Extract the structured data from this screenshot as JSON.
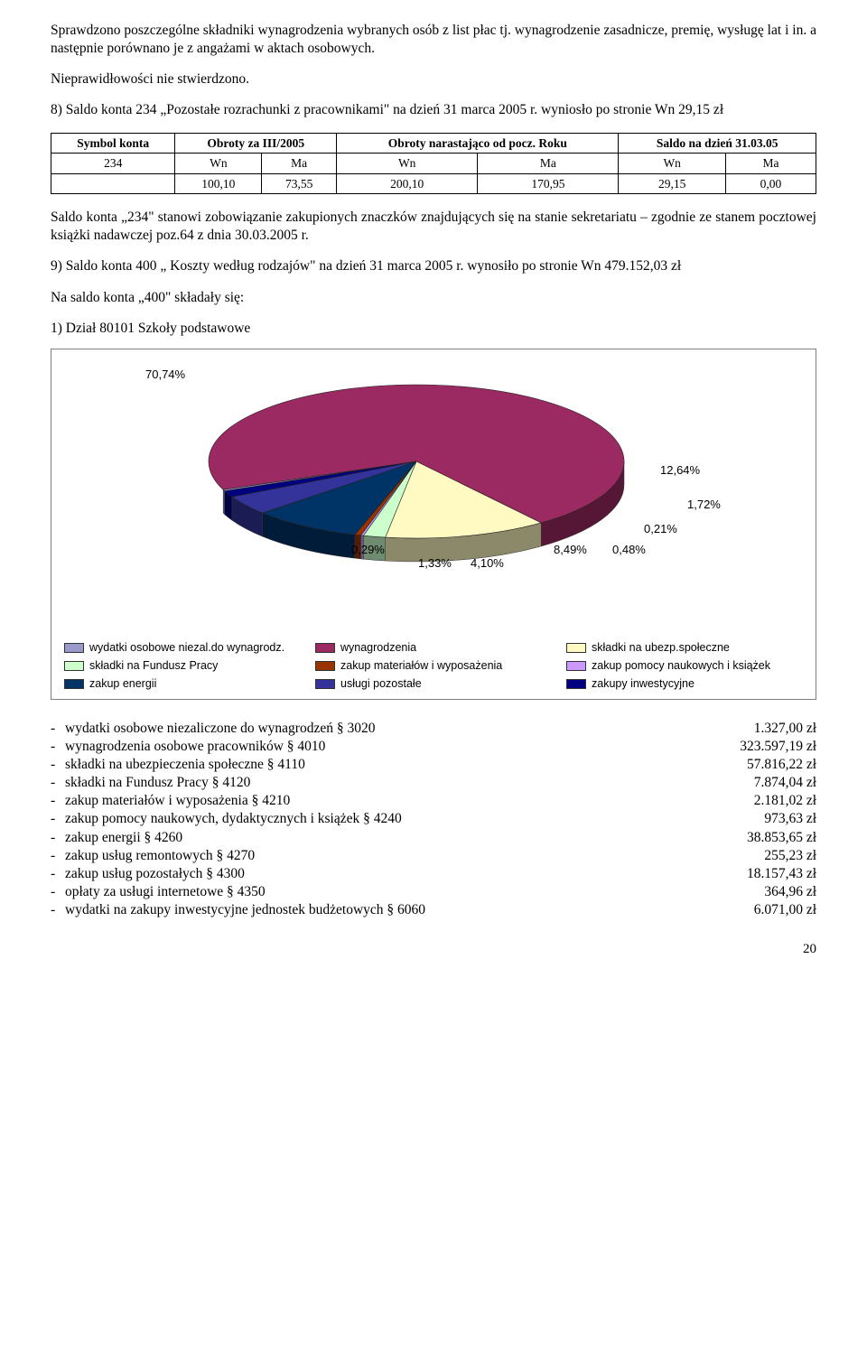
{
  "para1": "Sprawdzono poszczególne składniki wynagrodzenia wybranych osób z list płac tj. wynagrodzenie zasadnicze, premię, wysługę lat i in. a następnie porównano je z angażami w aktach osobowych.",
  "para2": "Nieprawidłowości nie stwierdzono.",
  "para3": "8) Saldo konta 234 „Pozostałe rozrachunki z pracownikami\" na dzień 31 marca 2005 r. wyniosło po stronie Wn 29,15 zł",
  "table": {
    "h_symbol": "Symbol konta",
    "h_obroty": "Obroty za III/2005",
    "h_narast": "Obroty narastająco od pocz. Roku",
    "h_saldo": "Saldo na dzień 31.03.05",
    "row_sym": "234",
    "wn": "Wn",
    "ma": "Ma",
    "v1": "100,10",
    "v2": "73,55",
    "v3": "200,10",
    "v4": "170,95",
    "v5": "29,15",
    "v6": "0,00"
  },
  "para4": "Saldo konta „234\" stanowi zobowiązanie zakupionych znaczków znajdujących się na stanie sekretariatu – zgodnie ze stanem pocztowej książki nadawczej poz.64 z dnia 30.03.2005 r.",
  "para5": "9) Saldo konta 400 „ Koszty według rodzajów\" na dzień 31 marca 2005 r. wynosiło po stronie Wn 479.152,03 zł",
  "para6": "Na saldo konta „400\" składały się:",
  "para7": "1)  Dział 80101 Szkoły podstawowe",
  "chart": {
    "type": "pie-3d",
    "slices": [
      {
        "label": "70,74%",
        "value": 70.74,
        "color": "#9b2a62",
        "legend": "wynagrodzenia"
      },
      {
        "label": "12,64%",
        "value": 12.64,
        "color": "#fff9c2",
        "legend": "składki na ubezp.społeczne"
      },
      {
        "label": "1,72%",
        "value": 1.72,
        "color": "#ccffcc",
        "legend": "składki na Fundusz Pracy"
      },
      {
        "label": "0,21%",
        "value": 0.21,
        "color": "#cc99ff",
        "legend": "zakup pomocy naukowych i książek"
      },
      {
        "label": "0,48%",
        "value": 0.48,
        "color": "#993300",
        "legend": "zakup materiałów i wyposażenia"
      },
      {
        "label": "8,49%",
        "value": 8.49,
        "color": "#003366",
        "legend": "zakup energii"
      },
      {
        "label": "4,10%",
        "value": 4.1,
        "color": "#333399",
        "legend": "usługi pozostałe"
      },
      {
        "label": "1,33%",
        "value": 1.33,
        "color": "#000080",
        "legend": "zakupy inwestycyjne"
      },
      {
        "label": "0,29%",
        "value": 0.29,
        "color": "#9999cc",
        "legend": "wydatki osobowe niezal.do wynagrodz."
      }
    ],
    "label_positions": {
      "p0": {
        "t": 6,
        "l": 90
      },
      "p1": {
        "t": 112,
        "l": 660
      },
      "p2": {
        "t": 150,
        "l": 690
      },
      "p3": {
        "t": 177,
        "l": 642
      },
      "p4": {
        "t": 200,
        "l": 607
      },
      "p5": {
        "t": 200,
        "l": 542
      },
      "p6": {
        "t": 215,
        "l": 450
      },
      "p7": {
        "t": 215,
        "l": 392
      },
      "p8": {
        "t": 200,
        "l": 318
      }
    },
    "legend_order": [
      "wydatki osobowe niezal.do wynagrodz.",
      "wynagrodzenia",
      "składki na ubezp.społeczne",
      "składki na Fundusz Pracy",
      "zakup materiałów i wyposażenia",
      "zakup pomocy naukowych i książek",
      "zakup energii",
      "usługi pozostałe",
      "zakupy inwestycyjne"
    ],
    "legend_colors": {
      "wydatki osobowe niezal.do wynagrodz.": "#9999cc",
      "wynagrodzenia": "#9b2a62",
      "składki na ubezp.społeczne": "#fff9c2",
      "składki na Fundusz Pracy": "#ccffcc",
      "zakup materiałów i wyposażenia": "#993300",
      "zakup pomocy naukowych i książek": "#cc99ff",
      "zakup energii": "#003366",
      "usługi pozostałe": "#333399",
      "zakupy inwestycyjne": "#000080"
    }
  },
  "expenses": [
    {
      "name": "wydatki osobowe niezaliczone do wynagrodzeń § 3020",
      "val": "1.327,00 zł"
    },
    {
      "name": "wynagrodzenia osobowe pracowników § 4010",
      "val": "323.597,19 zł"
    },
    {
      "name": "składki na ubezpieczenia społeczne § 4110",
      "val": "57.816,22 zł"
    },
    {
      "name": "składki na Fundusz Pracy § 4120",
      "val": "7.874,04 zł"
    },
    {
      "name": "zakup materiałów i wyposażenia § 4210",
      "val": "2.181,02 zł"
    },
    {
      "name": "zakup pomocy naukowych, dydaktycznych i książek § 4240",
      "val": "973,63 zł"
    },
    {
      "name": "zakup energii § 4260",
      "val": "38.853,65 zł"
    },
    {
      "name": "zakup usług remontowych § 4270",
      "val": "255,23 zł"
    },
    {
      "name": "zakup usług pozostałych § 4300",
      "val": "18.157,43 zł"
    },
    {
      "name": "opłaty za usługi internetowe § 4350",
      "val": "364,96 zł"
    },
    {
      "name": "wydatki na zakupy inwestycyjne jednostek budżetowych § 6060",
      "val": "6.071,00 zł"
    }
  ],
  "page": "20"
}
